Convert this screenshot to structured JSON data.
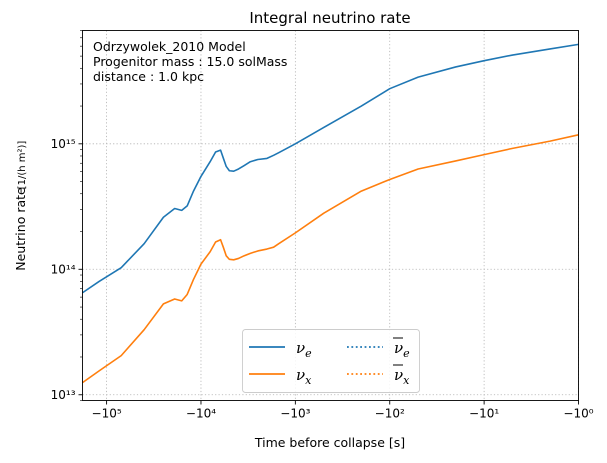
{
  "chart_data": {
    "type": "line",
    "title": "Integral neutrino rate",
    "xlabel": "Time before collapse [s]",
    "ylabel": "Neutrino rate",
    "ylabel_unit": "[1/(h m²)]",
    "x_scale": "symlog",
    "y_scale": "log",
    "xlim": [
      -180000,
      -1
    ],
    "ylim": [
      9000000000000.0,
      8000000000000000.0
    ],
    "x_ticks": [
      -100000,
      -10000,
      -1000,
      -100,
      -10,
      -1
    ],
    "x_tick_labels": [
      "−10⁵",
      "−10⁴",
      "−10³",
      "−10²",
      "−10¹",
      "−10⁰"
    ],
    "y_ticks": [
      10000000000000.0,
      100000000000000.0,
      1000000000000000.0
    ],
    "y_tick_labels": [
      "10¹³",
      "10¹⁴",
      "10¹⁵"
    ],
    "grid": true,
    "legend_placement": "bottom-center",
    "annotation_lines": [
      "Odrzywolek_2010 Model",
      "Progenitor mass  : 15.0 solMass",
      "distance : 1.0 kpc"
    ],
    "series": [
      {
        "name": "ν_e",
        "label_base": "ν",
        "label_sub": "e",
        "overline": false,
        "color": "#1f77b4",
        "style": "solid",
        "x": [
          -180000,
          -120000,
          -70000,
          -40000,
          -25000,
          -19000,
          -16000,
          -14000,
          -12000,
          -10000,
          -8000,
          -7000,
          -6200,
          -5800,
          -5400,
          -5000,
          -4500,
          -4000,
          -3500,
          -3000,
          -2500,
          -2000,
          -1700,
          -1500,
          -1000,
          -500,
          -200,
          -100,
          -50,
          -20,
          -10,
          -5,
          -2,
          -1
        ],
        "values": [
          65000000000000.0,
          80000000000000.0,
          103000000000000.0,
          160000000000000.0,
          260000000000000.0,
          305000000000000.0,
          295000000000000.0,
          320000000000000.0,
          420000000000000.0,
          550000000000000.0,
          720000000000000.0,
          860000000000000.0,
          890000000000000.0,
          770000000000000.0,
          660000000000000.0,
          610000000000000.0,
          605000000000000.0,
          630000000000000.0,
          670000000000000.0,
          720000000000000.0,
          750000000000000.0,
          765000000000000.0,
          810000000000000.0,
          850000000000000.0,
          1000000000000000.0,
          1350000000000000.0,
          2000000000000000.0,
          2750000000000000.0,
          3400000000000000.0,
          4100000000000000.0,
          4600000000000000.0,
          5100000000000000.0,
          5700000000000000.0,
          6200000000000000.0
        ]
      },
      {
        "name": "ν_x",
        "label_base": "ν",
        "label_sub": "x",
        "overline": false,
        "color": "#ff7f0e",
        "style": "solid",
        "x": [
          -180000,
          -120000,
          -70000,
          -40000,
          -25000,
          -19000,
          -16000,
          -14000,
          -12000,
          -10000,
          -8000,
          -7000,
          -6200,
          -5800,
          -5400,
          -5000,
          -4500,
          -4000,
          -3500,
          -3000,
          -2500,
          -2000,
          -1700,
          -1500,
          -1000,
          -500,
          -200,
          -100,
          -50,
          -20,
          -10,
          -5,
          -2,
          -1
        ],
        "values": [
          12500000000000.0,
          15500000000000.0,
          20500000000000.0,
          33000000000000.0,
          53000000000000.0,
          58000000000000.0,
          56000000000000.0,
          63000000000000.0,
          83000000000000.0,
          110000000000000.0,
          138000000000000.0,
          165000000000000.0,
          172000000000000.0,
          150000000000000.0,
          128000000000000.0,
          120000000000000.0,
          119000000000000.0,
          122000000000000.0,
          128000000000000.0,
          134000000000000.0,
          140000000000000.0,
          145000000000000.0,
          150000000000000.0,
          160000000000000.0,
          195000000000000.0,
          280000000000000.0,
          420000000000000.0,
          520000000000000.0,
          630000000000000.0,
          730000000000000.0,
          820000000000000.0,
          920000000000000.0,
          1050000000000000.0,
          1180000000000000.0
        ]
      },
      {
        "name": "anti-ν_e",
        "label_base": "ν",
        "label_sub": "e",
        "overline": true,
        "color": "#1f77b4",
        "style": "dotted",
        "x": [],
        "values": []
      },
      {
        "name": "anti-ν_x",
        "label_base": "ν",
        "label_sub": "x",
        "overline": true,
        "color": "#ff7f0e",
        "style": "dotted",
        "x": [],
        "values": []
      }
    ]
  }
}
